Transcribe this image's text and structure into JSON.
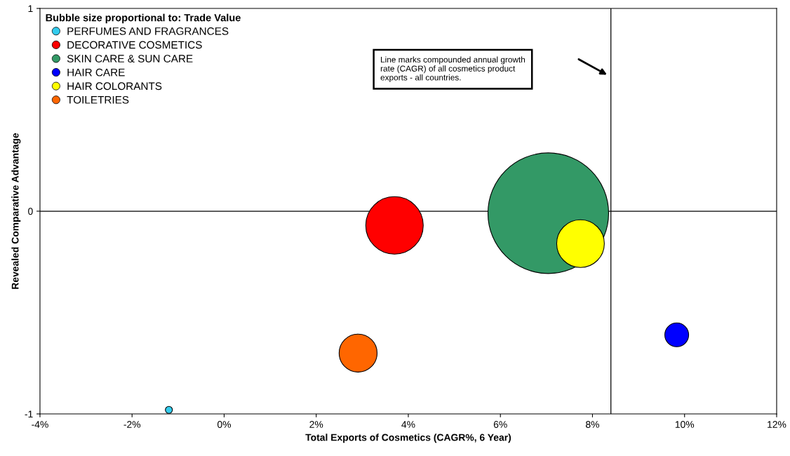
{
  "chart_data": {
    "type": "bubble",
    "xlabel": "Total Exports of Cosmetics (CAGR%, 6 Year)",
    "ylabel": "Revealed Comparative Advantage",
    "legend_title": "Bubble size proportional to: Trade Value",
    "legend": "top left",
    "grid": false,
    "marker": "circle",
    "xlim": [
      -4,
      12
    ],
    "xticks": [
      {
        "value": -4,
        "label": "-4%"
      },
      {
        "value": -2,
        "label": "-2%"
      },
      {
        "value": 0,
        "label": "0%"
      },
      {
        "value": 2,
        "label": "2%"
      },
      {
        "value": 4,
        "label": "4%"
      },
      {
        "value": 6,
        "label": "6%"
      },
      {
        "value": 8,
        "label": "8%"
      },
      {
        "value": 10,
        "label": "10%"
      },
      {
        "value": 12,
        "label": "12%"
      }
    ],
    "ylim": [
      -1,
      1
    ],
    "yticks": [
      -1,
      0,
      1
    ],
    "ref_lines": [
      {
        "axis": "x",
        "value": 8.4,
        "color": "#000000"
      },
      {
        "axis": "y",
        "value": 0,
        "color": "#000000"
      }
    ],
    "annotations": [
      "Line marks compounded annual growth\nrate (CAGR) of all cosmetics product\nexports - all countries."
    ],
    "series": [
      {
        "name": "PERFUMES AND FRAGRANCES",
        "color": "#33ccee",
        "x": [
          -1.2
        ],
        "values": [
          -0.98
        ],
        "sizes": [
          0.0034
        ]
      },
      {
        "name": "DECORATIVE COSMETICS",
        "color": "#ff0000",
        "x": [
          3.7
        ],
        "values": [
          -0.07
        ],
        "sizes": [
          0.227
        ]
      },
      {
        "name": "SKIN CARE & SUN CARE",
        "color": "#339966",
        "x": [
          7.04
        ],
        "values": [
          -0.01
        ],
        "sizes": [
          1
        ]
      },
      {
        "name": "HAIR CARE",
        "color": "#0000ff",
        "x": [
          9.83
        ],
        "values": [
          -0.61
        ],
        "sizes": [
          0.039
        ]
      },
      {
        "name": "HAIR COLORANTS",
        "color": "#ffff00",
        "x": [
          7.74
        ],
        "values": [
          -0.16
        ],
        "sizes": [
          0.156
        ]
      },
      {
        "name": "TOILETRIES",
        "color": "#ff6600",
        "x": [
          2.91
        ],
        "values": [
          -0.7
        ],
        "sizes": [
          0.099
        ]
      }
    ]
  }
}
